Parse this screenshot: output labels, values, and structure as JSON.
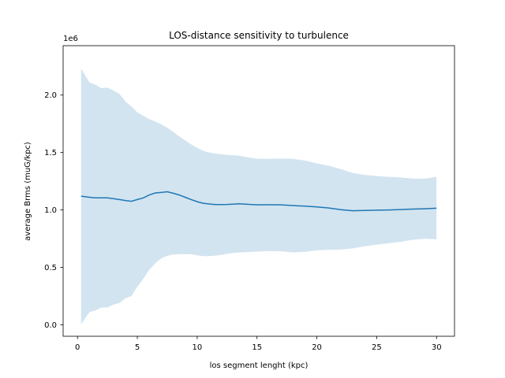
{
  "chart_data": {
    "type": "line",
    "title": "LOS-distance sensitivity to turbulence",
    "xlabel": "los segment lenght (kpc)",
    "ylabel": "average Brms (muG/kpc)",
    "offset_text": "1e6",
    "xlim": [
      -1.2,
      31.5
    ],
    "ylim": [
      -100000,
      2430000
    ],
    "xticks": [
      0,
      5,
      10,
      15,
      20,
      25,
      30
    ],
    "xtick_labels": [
      "0",
      "5",
      "10",
      "15",
      "20",
      "25",
      "30"
    ],
    "yticks": [
      0,
      500000,
      1000000,
      1500000,
      2000000
    ],
    "ytick_labels": [
      "0.0",
      "0.5",
      "1.0",
      "1.5",
      "2.0"
    ],
    "grid": false,
    "series": [
      {
        "x": [
          0.3,
          1.0,
          1.5,
          2.0,
          2.5,
          3.0,
          3.5,
          4.0,
          4.5,
          5.0,
          5.5,
          6.0,
          6.5,
          7.0,
          7.5,
          8.0,
          8.5,
          9.0,
          9.5,
          10.0,
          10.5,
          11.0,
          11.5,
          12.0,
          12.5,
          13.0,
          13.5,
          14.0,
          15.0,
          16.0,
          17.0,
          18.0,
          19.0,
          20.0,
          21.0,
          22.0,
          23.0,
          24.0,
          25.0,
          26.0,
          27.0,
          28.0,
          29.0,
          30.0
        ],
        "values": [
          1120000,
          1110000,
          1105000,
          1105000,
          1105000,
          1098000,
          1090000,
          1082000,
          1075000,
          1090000,
          1105000,
          1130000,
          1148000,
          1152000,
          1158000,
          1145000,
          1130000,
          1110000,
          1090000,
          1072000,
          1058000,
          1052000,
          1047000,
          1047000,
          1048000,
          1050000,
          1053000,
          1050000,
          1044000,
          1045000,
          1044000,
          1038000,
          1033000,
          1026000,
          1017000,
          1002000,
          993000,
          995000,
          998000,
          1000000,
          1003000,
          1007000,
          1010000,
          1015000
        ],
        "upper": [
          2230000,
          2110000,
          2090000,
          2060000,
          2065000,
          2040000,
          2010000,
          1945000,
          1900000,
          1850000,
          1820000,
          1790000,
          1770000,
          1745000,
          1715000,
          1680000,
          1640000,
          1605000,
          1570000,
          1540000,
          1515000,
          1500000,
          1490000,
          1485000,
          1478000,
          1476000,
          1472000,
          1462000,
          1446000,
          1444000,
          1447000,
          1444000,
          1430000,
          1405000,
          1385000,
          1355000,
          1322000,
          1305000,
          1295000,
          1288000,
          1283000,
          1273000,
          1272000,
          1288000
        ],
        "lower": [
          5000,
          110000,
          125000,
          150000,
          150000,
          175000,
          190000,
          230000,
          250000,
          330000,
          400000,
          480000,
          535000,
          578000,
          600000,
          612000,
          615000,
          616000,
          614000,
          605000,
          598000,
          598000,
          602000,
          608000,
          617000,
          625000,
          630000,
          632000,
          637000,
          642000,
          640000,
          630000,
          635000,
          648000,
          652000,
          655000,
          665000,
          683000,
          698000,
          710000,
          723000,
          740000,
          748000,
          745000
        ]
      }
    ],
    "line_color": "#1f77b4",
    "band_color": "#1f77b4",
    "band_opacity": 0.2
  }
}
